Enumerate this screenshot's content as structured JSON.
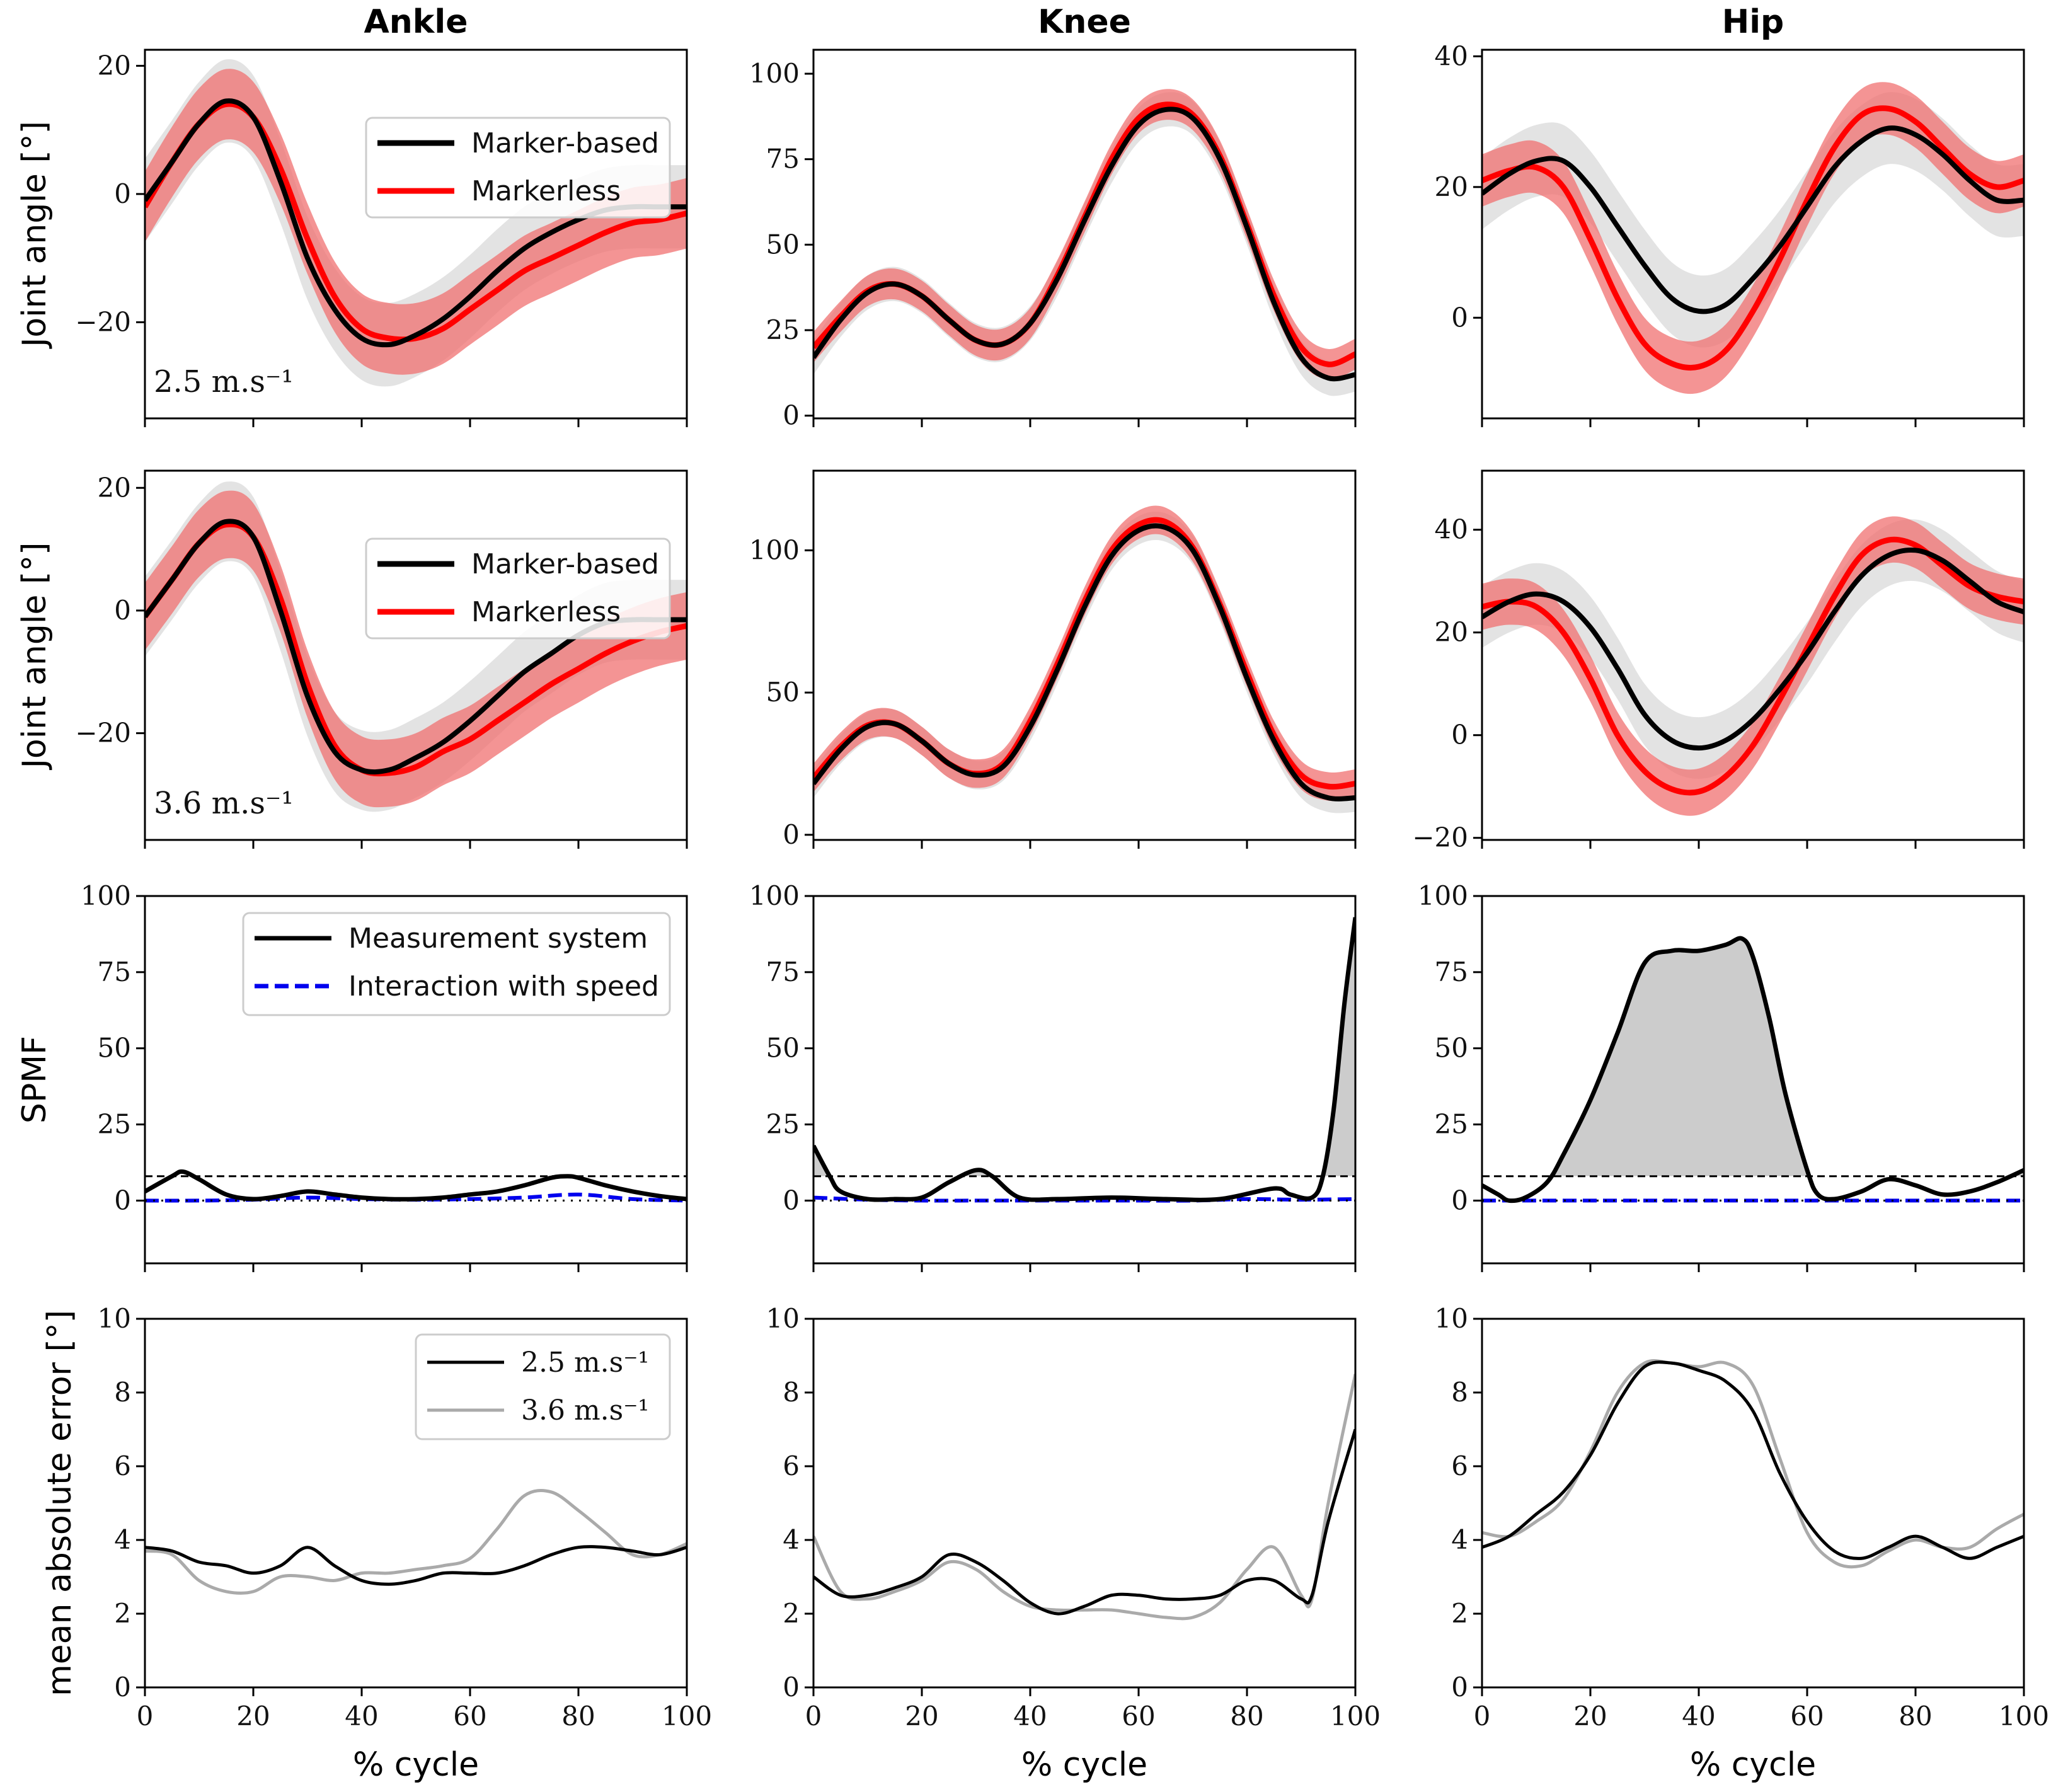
{
  "colors": {
    "marker_based": "#000000",
    "markerless": "#ff0000",
    "markerless_band": "#f07070",
    "marker_band": "#d9d9d9",
    "measurement": "#000000",
    "interaction": "#0000ee",
    "mae_25": "#000000",
    "mae_36": "#aaaaaa",
    "spm_fill": "#cccccc"
  },
  "chart_data": [
    {
      "id": "ankle-25",
      "type": "line",
      "title": "Ankle",
      "ylabel": "Joint angle [°]",
      "annotation": "2.5 m.s⁻¹",
      "ylim": [
        -35,
        22.5
      ],
      "yticks": [
        -20,
        0,
        20
      ],
      "xlim": [
        0,
        100
      ],
      "legend": {
        "placement": "top-right",
        "items": [
          "Marker-based",
          "Markerless"
        ]
      },
      "x": [
        0,
        5,
        10,
        15,
        20,
        25,
        30,
        35,
        40,
        45,
        50,
        55,
        60,
        65,
        70,
        75,
        80,
        85,
        90,
        95,
        100
      ],
      "series": [
        {
          "name": "Marker-based",
          "values": [
            -1,
            5,
            11,
            14.5,
            12,
            2,
            -10,
            -18,
            -22.5,
            -23.5,
            -22,
            -19.5,
            -16,
            -12,
            -8.5,
            -6,
            -4,
            -2.5,
            -2,
            -2,
            -2
          ],
          "sd": 6.5
        },
        {
          "name": "Markerless",
          "values": [
            -2,
            5,
            11,
            14,
            12,
            4,
            -7,
            -16,
            -21,
            -22.5,
            -22.5,
            -21,
            -18,
            -15,
            -12,
            -10,
            -8,
            -6,
            -4.5,
            -4,
            -3
          ],
          "sd": 5.5
        }
      ]
    },
    {
      "id": "knee-25",
      "type": "line",
      "title": "Knee",
      "ylim": [
        -0.8,
        107
      ],
      "yticks": [
        0,
        25,
        50,
        75,
        100
      ],
      "xlim": [
        0,
        100
      ],
      "x": [
        0,
        5,
        10,
        15,
        20,
        25,
        30,
        35,
        40,
        45,
        50,
        55,
        60,
        65,
        70,
        75,
        80,
        85,
        90,
        95,
        100
      ],
      "series": [
        {
          "name": "Marker-based",
          "values": [
            17,
            28,
            36,
            38.5,
            35,
            28,
            22,
            21,
            27,
            40,
            57,
            73,
            85,
            89.5,
            87,
            75,
            55,
            33,
            17,
            11,
            12
          ],
          "sd": 5
        },
        {
          "name": "Markerless",
          "values": [
            20,
            29,
            36.5,
            38.5,
            35,
            28,
            22,
            21,
            27,
            41,
            58,
            75,
            87,
            91,
            88,
            76,
            56,
            35,
            20,
            15,
            18
          ],
          "sd": 4.5
        }
      ]
    },
    {
      "id": "hip-25",
      "type": "line",
      "title": "Hip",
      "ylim": [
        -15.4,
        41
      ],
      "yticks": [
        0,
        20,
        40
      ],
      "xlim": [
        0,
        100
      ],
      "x": [
        0,
        5,
        10,
        15,
        20,
        25,
        30,
        35,
        40,
        45,
        50,
        55,
        60,
        65,
        70,
        75,
        80,
        85,
        90,
        95,
        100
      ],
      "series": [
        {
          "name": "Marker-based",
          "values": [
            19,
            22,
            24,
            24,
            20,
            14,
            8,
            3,
            1,
            2,
            6,
            11,
            17,
            23,
            27,
            29,
            28,
            25,
            21,
            18,
            18
          ],
          "sd": 5.5
        },
        {
          "name": "Markerless",
          "values": [
            21,
            22.5,
            23,
            20,
            12,
            3,
            -4,
            -7,
            -7.5,
            -5,
            1,
            9,
            18,
            26,
            31,
            32,
            30,
            26,
            22,
            20,
            21
          ],
          "sd": 4
        }
      ]
    },
    {
      "id": "ankle-36",
      "type": "line",
      "ylabel": "Joint angle [°]",
      "annotation": "3.6 m.s⁻¹",
      "ylim": [
        -37.4,
        22.8
      ],
      "yticks": [
        -20,
        0,
        20
      ],
      "xlim": [
        0,
        100
      ],
      "legend": {
        "placement": "top-right",
        "items": [
          "Marker-based",
          "Markerless"
        ]
      },
      "x": [
        0,
        5,
        10,
        15,
        20,
        25,
        30,
        35,
        40,
        45,
        50,
        55,
        60,
        65,
        70,
        75,
        80,
        85,
        90,
        95,
        100
      ],
      "series": [
        {
          "name": "Marker-based",
          "values": [
            -1,
            5,
            11,
            14.5,
            12,
            0,
            -14,
            -23,
            -26,
            -26,
            -24,
            -21.5,
            -18,
            -14,
            -10,
            -7,
            -4,
            -2,
            -1.5,
            -1.5,
            -1.5
          ],
          "sd": 6.5
        },
        {
          "name": "Markerless",
          "values": [
            -1,
            5,
            11,
            14,
            12,
            2,
            -12,
            -22,
            -26,
            -26.5,
            -25.5,
            -23,
            -21,
            -18,
            -15,
            -12,
            -9.5,
            -7,
            -5,
            -3.5,
            -2.5
          ],
          "sd": 5.5
        }
      ]
    },
    {
      "id": "knee-36",
      "type": "line",
      "ylim": [
        -1.8,
        128
      ],
      "yticks": [
        0,
        50,
        100
      ],
      "xlim": [
        0,
        100
      ],
      "x": [
        0,
        5,
        10,
        15,
        20,
        25,
        30,
        35,
        40,
        45,
        50,
        55,
        60,
        65,
        70,
        75,
        80,
        85,
        90,
        95,
        100
      ],
      "series": [
        {
          "name": "Marker-based",
          "values": [
            18,
            30,
            38,
            39,
            33,
            25,
            21,
            24,
            38,
            58,
            80,
            98,
            107,
            108,
            100,
            80,
            55,
            33,
            18,
            13,
            13
          ],
          "sd": 5
        },
        {
          "name": "Markerless",
          "values": [
            20,
            31,
            38.5,
            39,
            33,
            25,
            21.5,
            25,
            40,
            60,
            82,
            100,
            109,
            110,
            101,
            81,
            57,
            35,
            21,
            17,
            18
          ],
          "sd": 5
        }
      ]
    },
    {
      "id": "hip-36",
      "type": "line",
      "ylim": [
        -20.4,
        51.5
      ],
      "yticks": [
        -20,
        0,
        20,
        40
      ],
      "xlim": [
        0,
        100
      ],
      "x": [
        0,
        5,
        10,
        15,
        20,
        25,
        30,
        35,
        40,
        45,
        50,
        55,
        60,
        65,
        70,
        75,
        80,
        85,
        90,
        95,
        100
      ],
      "series": [
        {
          "name": "Marker-based",
          "values": [
            23,
            26,
            27.5,
            26,
            21,
            13,
            4,
            -1,
            -2.5,
            -1,
            3,
            9,
            16,
            24,
            31,
            35,
            36,
            34,
            30,
            26,
            24
          ],
          "sd": 6
        },
        {
          "name": "Markerless",
          "values": [
            25,
            26,
            25,
            20,
            11,
            0,
            -7,
            -10.5,
            -11,
            -8,
            -2,
            7,
            17,
            27,
            35,
            38,
            37,
            33,
            29,
            27,
            26
          ],
          "sd": 4.5
        }
      ]
    },
    {
      "id": "ankle-spm",
      "type": "line",
      "ylabel": "SPMF",
      "ylim": [
        -20.6,
        100
      ],
      "yticks": [
        0,
        25,
        50,
        75,
        100
      ],
      "xlim": [
        0,
        100
      ],
      "threshold": 8,
      "legend": {
        "placement": "top-right",
        "items": [
          "Measurement system",
          "Interaction with speed"
        ]
      },
      "series": [
        {
          "name": "Measurement system",
          "x": [
            0,
            5,
            7,
            10,
            15,
            20,
            25,
            30,
            35,
            40,
            45,
            50,
            55,
            60,
            65,
            70,
            75,
            78,
            80,
            85,
            90,
            95,
            100
          ],
          "values": [
            3,
            8,
            9.5,
            7,
            2,
            0.5,
            1.5,
            3,
            2,
            1,
            0.5,
            0.5,
            1,
            2,
            3,
            5,
            7.5,
            8,
            7.5,
            5,
            3,
            1.5,
            0.5
          ]
        },
        {
          "name": "Interaction with speed",
          "x": [
            0,
            10,
            20,
            30,
            40,
            50,
            60,
            70,
            80,
            90,
            100
          ],
          "values": [
            0,
            0,
            0.3,
            1,
            0.5,
            0.3,
            0.5,
            1,
            2,
            0.5,
            0
          ]
        }
      ]
    },
    {
      "id": "knee-spm",
      "type": "line",
      "ylim": [
        -20.6,
        100
      ],
      "yticks": [
        0,
        25,
        50,
        75,
        100
      ],
      "xlim": [
        0,
        100
      ],
      "threshold": 8,
      "series": [
        {
          "name": "Measurement system",
          "x": [
            0,
            3,
            5,
            10,
            15,
            20,
            25,
            30,
            33,
            38,
            45,
            55,
            65,
            75,
            85,
            88,
            92,
            94,
            96,
            98,
            100
          ],
          "values": [
            18,
            8,
            3,
            0.5,
            0.5,
            1,
            6,
            10,
            8,
            1,
            0.5,
            1,
            0.5,
            0.5,
            4,
            2,
            1,
            8,
            30,
            65,
            93
          ]
        },
        {
          "name": "Interaction with speed",
          "x": [
            0,
            10,
            20,
            30,
            40,
            50,
            60,
            70,
            80,
            90,
            100
          ],
          "values": [
            1,
            0.3,
            0,
            0,
            0,
            0,
            0,
            0,
            0.5,
            0.3,
            0.5
          ]
        }
      ]
    },
    {
      "id": "hip-spm",
      "type": "line",
      "ylim": [
        -20.6,
        100
      ],
      "yticks": [
        0,
        25,
        50,
        75,
        100
      ],
      "xlim": [
        0,
        100
      ],
      "threshold": 8,
      "series": [
        {
          "name": "Measurement system",
          "x": [
            0,
            3,
            5,
            8,
            12,
            15,
            20,
            25,
            30,
            35,
            40,
            45,
            48,
            50,
            53,
            56,
            60,
            62,
            65,
            70,
            75,
            80,
            85,
            90,
            95,
            100
          ],
          "values": [
            5,
            2,
            0,
            1,
            6,
            15,
            33,
            55,
            78,
            82,
            82,
            84,
            86,
            80,
            60,
            35,
            10,
            2,
            0.5,
            3,
            7,
            5,
            2,
            3,
            6,
            10
          ]
        },
        {
          "name": "Interaction with speed",
          "x": [
            0,
            20,
            40,
            60,
            80,
            100
          ],
          "values": [
            0,
            0,
            0,
            0,
            0,
            0
          ]
        }
      ]
    },
    {
      "id": "ankle-mae",
      "type": "line",
      "ylabel": "mean absolute error [°]",
      "xlabel": "% cycle",
      "ylim": [
        0,
        10
      ],
      "yticks": [
        0,
        2,
        4,
        6,
        8,
        10
      ],
      "xlim": [
        0,
        100
      ],
      "xticks": [
        0,
        20,
        40,
        60,
        80,
        100
      ],
      "legend": {
        "placement": "top-right",
        "items": [
          "2.5 m.s⁻¹",
          "3.6 m.s⁻¹"
        ]
      },
      "x": [
        0,
        5,
        10,
        15,
        20,
        25,
        30,
        35,
        40,
        45,
        50,
        55,
        60,
        65,
        70,
        75,
        80,
        85,
        90,
        95,
        100
      ],
      "series": [
        {
          "name": "2.5 m.s⁻¹",
          "values": [
            3.8,
            3.7,
            3.4,
            3.3,
            3.1,
            3.3,
            3.8,
            3.3,
            2.9,
            2.8,
            2.9,
            3.1,
            3.1,
            3.1,
            3.3,
            3.6,
            3.8,
            3.8,
            3.7,
            3.6,
            3.8
          ]
        },
        {
          "name": "3.6 m.s⁻¹",
          "values": [
            3.7,
            3.6,
            2.9,
            2.6,
            2.6,
            3.0,
            3.0,
            2.9,
            3.1,
            3.1,
            3.2,
            3.3,
            3.5,
            4.3,
            5.2,
            5.3,
            4.8,
            4.2,
            3.6,
            3.6,
            3.9
          ]
        }
      ]
    },
    {
      "id": "knee-mae",
      "type": "line",
      "xlabel": "% cycle",
      "ylim": [
        0,
        10
      ],
      "yticks": [
        0,
        2,
        4,
        6,
        8,
        10
      ],
      "xlim": [
        0,
        100
      ],
      "xticks": [
        0,
        20,
        40,
        60,
        80,
        100
      ],
      "x": [
        0,
        5,
        10,
        15,
        20,
        25,
        30,
        35,
        40,
        45,
        50,
        55,
        60,
        65,
        70,
        75,
        80,
        85,
        90,
        92,
        95,
        100
      ],
      "series": [
        {
          "name": "2.5 m.s⁻¹",
          "values": [
            3.0,
            2.5,
            2.5,
            2.7,
            3.0,
            3.6,
            3.4,
            2.9,
            2.3,
            2.0,
            2.2,
            2.5,
            2.5,
            2.4,
            2.4,
            2.5,
            2.9,
            2.9,
            2.4,
            2.5,
            4.5,
            7.0
          ]
        },
        {
          "name": "3.6 m.s⁻¹",
          "values": [
            4.1,
            2.6,
            2.4,
            2.6,
            2.9,
            3.4,
            3.2,
            2.6,
            2.2,
            2.1,
            2.1,
            2.1,
            2.0,
            1.9,
            1.9,
            2.3,
            3.2,
            3.8,
            2.5,
            2.4,
            5.0,
            8.5
          ]
        }
      ]
    },
    {
      "id": "hip-mae",
      "type": "line",
      "xlabel": "% cycle",
      "ylim": [
        0,
        10
      ],
      "yticks": [
        0,
        2,
        4,
        6,
        8,
        10
      ],
      "xlim": [
        0,
        100
      ],
      "xticks": [
        0,
        20,
        40,
        60,
        80,
        100
      ],
      "x": [
        0,
        5,
        10,
        15,
        20,
        25,
        30,
        35,
        40,
        45,
        50,
        55,
        60,
        65,
        70,
        75,
        80,
        85,
        90,
        95,
        100
      ],
      "series": [
        {
          "name": "2.5 m.s⁻¹",
          "values": [
            3.8,
            4.1,
            4.7,
            5.3,
            6.3,
            7.7,
            8.7,
            8.8,
            8.6,
            8.3,
            7.5,
            5.8,
            4.5,
            3.7,
            3.5,
            3.8,
            4.1,
            3.8,
            3.5,
            3.8,
            4.1
          ]
        },
        {
          "name": "3.6 m.s⁻¹",
          "values": [
            4.2,
            4.1,
            4.5,
            5.1,
            6.4,
            8.0,
            8.8,
            8.8,
            8.7,
            8.8,
            8.2,
            6.2,
            4.2,
            3.4,
            3.3,
            3.7,
            4.0,
            3.8,
            3.8,
            4.3,
            4.7
          ]
        }
      ]
    }
  ]
}
